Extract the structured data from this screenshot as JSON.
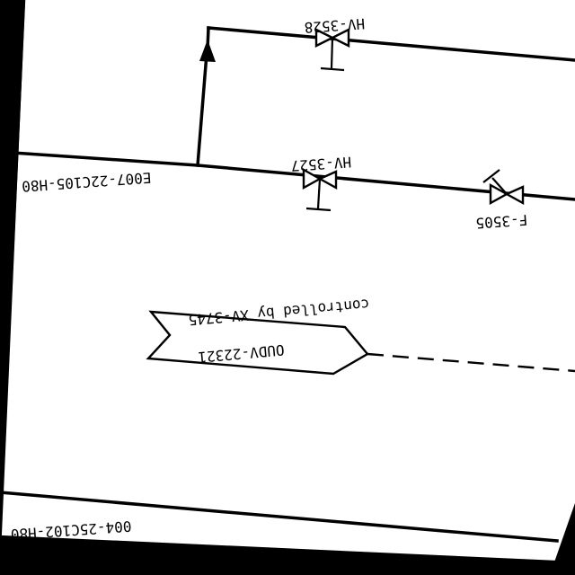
{
  "diagram": {
    "lines": {
      "upper_line_id": "E007-22C105-H80",
      "lower_line_id": "004-25C102-H80"
    },
    "valves": [
      {
        "tag": "HV-3528"
      },
      {
        "tag": "HV-3527"
      },
      {
        "tag": "F-3505"
      }
    ],
    "off_page": {
      "ref": "OUDV-22321",
      "note": "controlled by XV-3745"
    }
  }
}
